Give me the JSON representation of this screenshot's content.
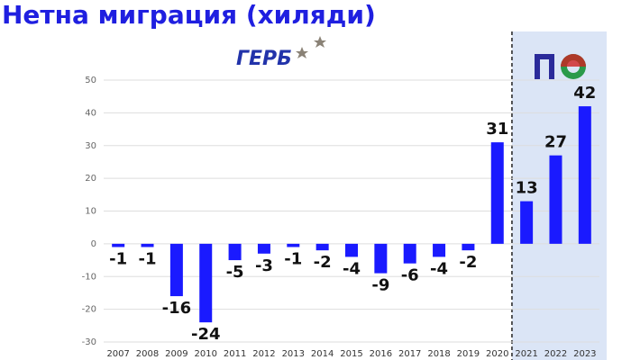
{
  "chart_data": {
    "type": "bar",
    "title": "Нетна миграция (хиляди)",
    "annotations": [
      "ГЕРБ"
    ],
    "categories": [
      "2007",
      "2008",
      "2009",
      "2010",
      "2011",
      "2012",
      "2013",
      "2014",
      "2015",
      "2016",
      "2017",
      "2018",
      "2019",
      "2020",
      "2021",
      "2022",
      "2023"
    ],
    "values": [
      -1,
      -1,
      -16,
      -24,
      -5,
      -3,
      -1,
      -2,
      -4,
      -9,
      -6,
      -4,
      -2,
      31,
      13,
      27,
      42
    ],
    "color": "#1a1aff",
    "ylim": [
      -30,
      50
    ],
    "yticks": [
      -30,
      -20,
      -10,
      0,
      10,
      20,
      30,
      40,
      50
    ],
    "grid": true,
    "shaded_region": {
      "from": "2021",
      "to": "2023",
      "color": "#dbe5f6"
    }
  }
}
